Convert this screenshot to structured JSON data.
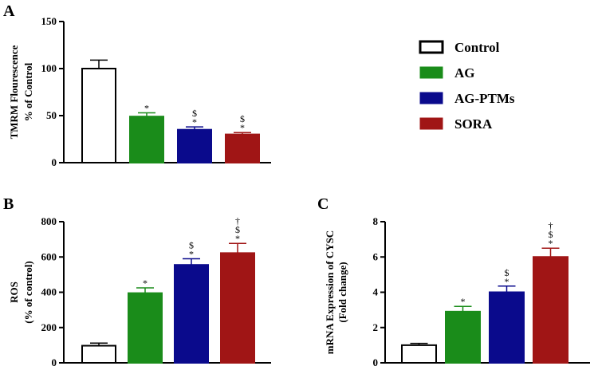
{
  "legend": [
    {
      "name": "Control",
      "color": "#ffffff"
    },
    {
      "name": "AG",
      "color": "#1a8c1a"
    },
    {
      "name": "AG-PTMs",
      "color": "#0a0a8c"
    },
    {
      "name": "SORA",
      "color": "#a01515"
    }
  ],
  "chart_data": [
    {
      "panel": "A",
      "type": "bar",
      "ylabel_lines": [
        "TMRM Flourescence",
        "% of Control"
      ],
      "ylim": [
        0,
        150
      ],
      "yticks": [
        0,
        50,
        100,
        150
      ],
      "categories": [
        "Control",
        "AG",
        "AG-PTMs",
        "SORA"
      ],
      "values": [
        100,
        49,
        35,
        30
      ],
      "errors": [
        9,
        4,
        3,
        2
      ],
      "annotations": [
        [],
        [
          "*"
        ],
        [
          "$",
          "*"
        ],
        [
          "$",
          "*"
        ]
      ]
    },
    {
      "panel": "B",
      "type": "bar",
      "ylabel_lines": [
        "ROS",
        "(% of control)"
      ],
      "ylim": [
        0,
        800
      ],
      "yticks": [
        0,
        200,
        400,
        600,
        800
      ],
      "categories": [
        "Control",
        "AG",
        "AG-PTMs",
        "SORA"
      ],
      "values": [
        97,
        395,
        555,
        622
      ],
      "errors": [
        15,
        30,
        35,
        55
      ],
      "annotations": [
        [],
        [
          "*"
        ],
        [
          "$",
          "*"
        ],
        [
          "†",
          "$",
          "*"
        ]
      ]
    },
    {
      "panel": "C",
      "type": "bar",
      "ylabel_lines": [
        "mRNA Expression of CYSC",
        "(Fold change)"
      ],
      "ylim": [
        0,
        8
      ],
      "yticks": [
        0,
        2,
        4,
        6,
        8
      ],
      "categories": [
        "Control",
        "AG",
        "AG-PTMs",
        "SORA"
      ],
      "values": [
        1.0,
        2.9,
        4.0,
        6.0
      ],
      "errors": [
        0.1,
        0.3,
        0.35,
        0.5
      ],
      "annotations": [
        [],
        [
          "*"
        ],
        [
          "$",
          "*"
        ],
        [
          "†",
          "$",
          "*"
        ]
      ]
    }
  ]
}
